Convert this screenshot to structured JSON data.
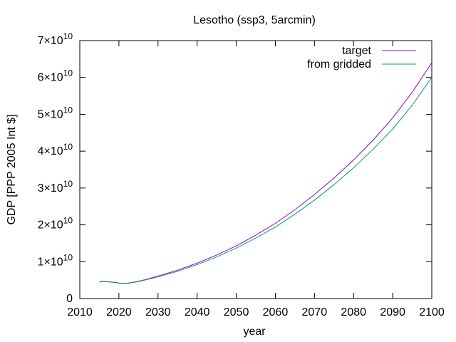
{
  "chart_data": {
    "type": "line",
    "title": "Lesotho (ssp3, 5arcmin)",
    "xlabel": "year",
    "ylabel": "GDP [PPP 2005 Int $]",
    "xlim": [
      2010,
      2100
    ],
    "ylim": [
      0,
      70000000000
    ],
    "grid": false,
    "legend_position": "top-right",
    "x_ticks": [
      {
        "value": 2010,
        "label": "2010"
      },
      {
        "value": 2020,
        "label": "2020"
      },
      {
        "value": 2030,
        "label": "2030"
      },
      {
        "value": 2040,
        "label": "2040"
      },
      {
        "value": 2050,
        "label": "2050"
      },
      {
        "value": 2060,
        "label": "2060"
      },
      {
        "value": 2070,
        "label": "2070"
      },
      {
        "value": 2080,
        "label": "2080"
      },
      {
        "value": 2090,
        "label": "2090"
      },
      {
        "value": 2100,
        "label": "2100"
      }
    ],
    "y_ticks": [
      {
        "value": 0,
        "label": "0",
        "mantissa": "0",
        "exponent": ""
      },
      {
        "value": 10000000000,
        "label": "1×10^10",
        "mantissa": "1×10",
        "exponent": "10"
      },
      {
        "value": 20000000000,
        "label": "2×10^10",
        "mantissa": "2×10",
        "exponent": "10"
      },
      {
        "value": 30000000000,
        "label": "3×10^10",
        "mantissa": "3×10",
        "exponent": "10"
      },
      {
        "value": 40000000000,
        "label": "4×10^10",
        "mantissa": "4×10",
        "exponent": "10"
      },
      {
        "value": 50000000000,
        "label": "5×10^10",
        "mantissa": "5×10",
        "exponent": "10"
      },
      {
        "value": 60000000000,
        "label": "6×10^10",
        "mantissa": "6×10",
        "exponent": "10"
      },
      {
        "value": 70000000000,
        "label": "7×10^10",
        "mantissa": "7×10",
        "exponent": "10"
      }
    ],
    "series": [
      {
        "name": "target",
        "color": "#9400d3",
        "x": [
          2015,
          2016,
          2017,
          2018,
          2019,
          2020,
          2021,
          2022,
          2023,
          2025,
          2027,
          2030,
          2035,
          2040,
          2045,
          2050,
          2055,
          2060,
          2065,
          2070,
          2075,
          2080,
          2085,
          2090,
          2095,
          2100
        ],
        "y": [
          4500000000,
          4700000000,
          4600000000,
          4500000000,
          4400000000,
          4200000000,
          4100000000,
          4150000000,
          4300000000,
          4700000000,
          5200000000,
          6100000000,
          7700000000,
          9600000000,
          11800000000,
          14300000000,
          17200000000,
          20400000000,
          24100000000,
          28200000000,
          32700000000,
          37600000000,
          43000000000,
          49000000000,
          56000000000,
          64000000000
        ]
      },
      {
        "name": "from gridded",
        "color": "#009e73",
        "x": [
          2015,
          2016,
          2017,
          2018,
          2019,
          2020,
          2021,
          2022,
          2023,
          2025,
          2027,
          2030,
          2035,
          2040,
          2045,
          2050,
          2055,
          2060,
          2065,
          2070,
          2075,
          2080,
          2085,
          2090,
          2095,
          2100
        ],
        "y": [
          4450000000,
          4650000000,
          4550000000,
          4450000000,
          4350000000,
          4150000000,
          4050000000,
          4100000000,
          4250000000,
          4600000000,
          5100000000,
          5900000000,
          7400000000,
          9200000000,
          11300000000,
          13700000000,
          16400000000,
          19400000000,
          22900000000,
          26700000000,
          30900000000,
          35500000000,
          40500000000,
          46000000000,
          52500000000,
          60000000000
        ]
      }
    ]
  }
}
